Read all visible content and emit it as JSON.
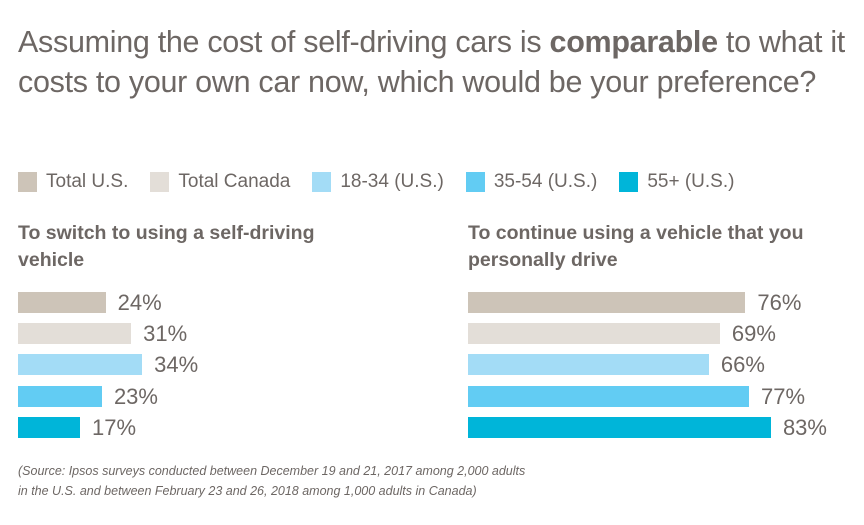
{
  "title": {
    "prefix": "Assuming the cost of self-driving cars is ",
    "bold": "comparable",
    "suffix": " to what it costs to your own car now, which would be your preference?"
  },
  "chart_data": {
    "type": "bar",
    "orientation": "horizontal",
    "series_names": [
      "Total U.S.",
      "Total Canada",
      "18-34 (U.S.)",
      "35-54 (U.S.)",
      "55+ (U.S.)"
    ],
    "colors": [
      "#cdc4b8",
      "#e3ded8",
      "#a3dcf6",
      "#62ccf3",
      "#00b5d9"
    ],
    "legend_position": "top",
    "panels": [
      {
        "title": "To switch to using a self-driving vehicle",
        "values": [
          24,
          31,
          34,
          23,
          17
        ],
        "labels": [
          "24%",
          "31%",
          "34%",
          "23%",
          "17%"
        ]
      },
      {
        "title": "To continue using a vehicle that you personally drive",
        "values": [
          76,
          69,
          66,
          77,
          83
        ],
        "labels": [
          "76%",
          "69%",
          "66%",
          "77%",
          "83%"
        ]
      }
    ],
    "unit": "%"
  },
  "source": {
    "line1": "(Source: Ipsos surveys conducted between December 19 and 21, 2017 among 2,000 adults",
    "line2": "in the U.S. and between February 23 and 26, 2018 among 1,000 adults in Canada)"
  }
}
